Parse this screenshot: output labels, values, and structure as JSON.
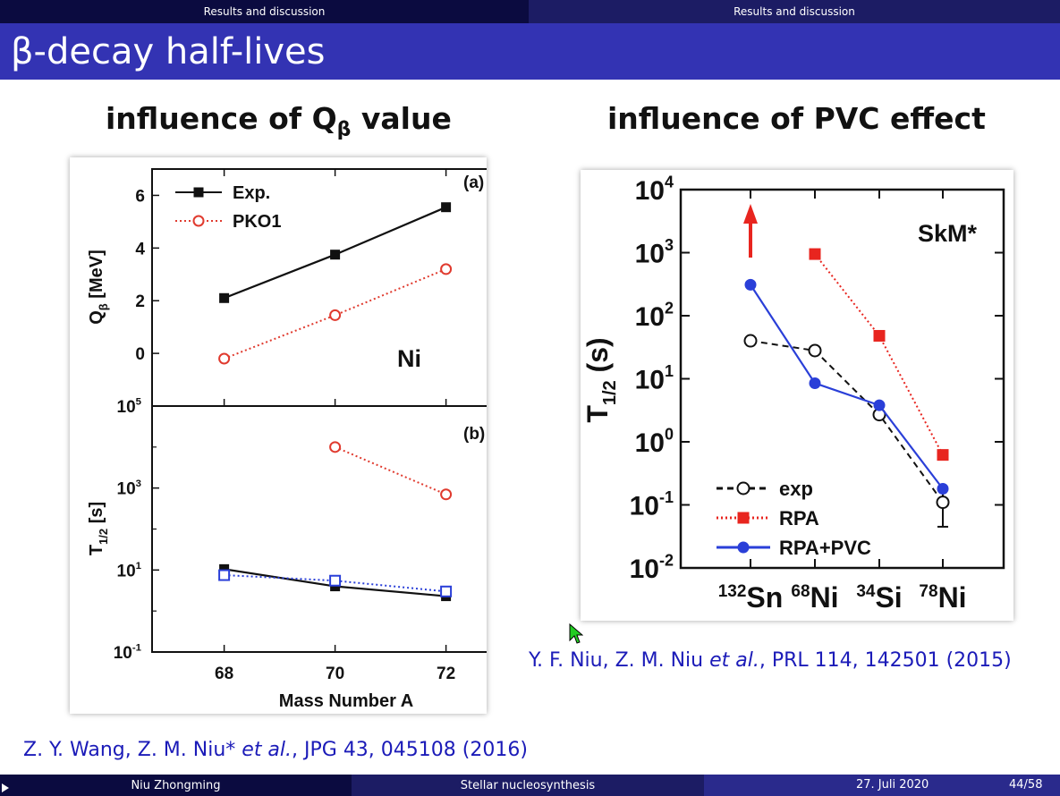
{
  "header": {
    "section_left": "Results and discussion",
    "section_right": "Results and discussion",
    "frame_title": "β-decay half-lives"
  },
  "left": {
    "subtitle_pre": "influence of Q",
    "subtitle_sub": "β",
    "subtitle_post": " value",
    "reference": {
      "authors": "Z. Y. Wang, Z. M. Niu* ",
      "etal": "et al.",
      "citation": ", JPG 43, 045108 (2016)"
    }
  },
  "right": {
    "subtitle": "influence of PVC effect",
    "reference": {
      "authors": "Y. F. Niu, Z. M. Niu ",
      "etal": "et al.",
      "citation": ", PRL 114, 142501 (2015)"
    }
  },
  "footer": {
    "author": "Niu Zhongming",
    "title": "Stellar nucleosynthesis",
    "date": "27. Juli 2020",
    "page": "44/58"
  },
  "chart_data": [
    {
      "type": "line",
      "panel_label": "(a)",
      "annotation": "Ni",
      "x": [
        68,
        70,
        72
      ],
      "xlim": [
        66.7,
        73.7
      ],
      "ylim": [
        -2,
        7
      ],
      "yticks": [
        0,
        2,
        4,
        6
      ],
      "ylabel": "Q",
      "ylabel_sub": "β",
      "ylabel_unit": " [MeV]",
      "grid": false,
      "legend_position": "top-left",
      "series": [
        {
          "name": "Exp.",
          "values": [
            2.1,
            3.75,
            5.55
          ],
          "color": "#111111",
          "marker": "filled-square",
          "line": "solid"
        },
        {
          "name": "PKO1",
          "values": [
            -0.2,
            1.45,
            3.2
          ],
          "color": "#e03a2e",
          "marker": "open-circle",
          "line": "dotted"
        }
      ]
    },
    {
      "type": "line",
      "panel_label": "(b)",
      "x": [
        68,
        70,
        72
      ],
      "xlim": [
        66.7,
        73.7
      ],
      "ylim": [
        0.1,
        100000
      ],
      "yscale": "log",
      "ytick_labels": [
        "10",
        "10",
        "10"
      ],
      "ytick_exponents": [
        "-1",
        "1",
        "3"
      ],
      "top_tick_label": "10",
      "top_tick_exponent": "5",
      "xticks": [
        "68",
        "70",
        "72"
      ],
      "ylabel": "T",
      "ylabel_sub": "1/2",
      "ylabel_unit": " [s]",
      "xlabel": "Mass Number A",
      "grid": false,
      "series": [
        {
          "values": [
            10.5,
            4.0,
            2.3
          ],
          "color": "#111111",
          "marker": "filled-square",
          "line": "solid"
        },
        {
          "values": [
            null,
            10000,
            700
          ],
          "color": "#e03a2e",
          "marker": "open-circle",
          "line": "dotted"
        },
        {
          "values": [
            7.5,
            5.5,
            3.0
          ],
          "color": "#2a3fd8",
          "marker": "open-square",
          "line": "dotted"
        }
      ]
    },
    {
      "type": "line",
      "annotation": "SkM*",
      "categories_base": [
        "Sn",
        "Ni",
        "Si",
        "Ni"
      ],
      "categories_mass": [
        "132",
        "68",
        "34",
        "78"
      ],
      "ylim": [
        0.01,
        10000
      ],
      "yscale": "log",
      "ytick_exponents": [
        "-2",
        "-1",
        "0",
        "1",
        "2",
        "3",
        "4"
      ],
      "ylabel": "T",
      "ylabel_sub": "1/2",
      "ylabel_unit": " (s)",
      "grid": false,
      "legend_position": "bottom-left",
      "series": [
        {
          "name": "exp",
          "values": [
            40,
            28,
            2.7,
            0.11
          ],
          "color": "#111111",
          "marker": "open-circle",
          "line": "dashed"
        },
        {
          "name": "RPA",
          "values": [
            null,
            950,
            48,
            0.62
          ],
          "color": "#e8251f",
          "marker": "filled-square",
          "line": "dotted"
        },
        {
          "name": "RPA+PVC",
          "values": [
            310,
            8.5,
            3.8,
            0.18
          ],
          "color": "#2a3fd8",
          "marker": "filled-circle",
          "line": "solid"
        }
      ]
    }
  ]
}
